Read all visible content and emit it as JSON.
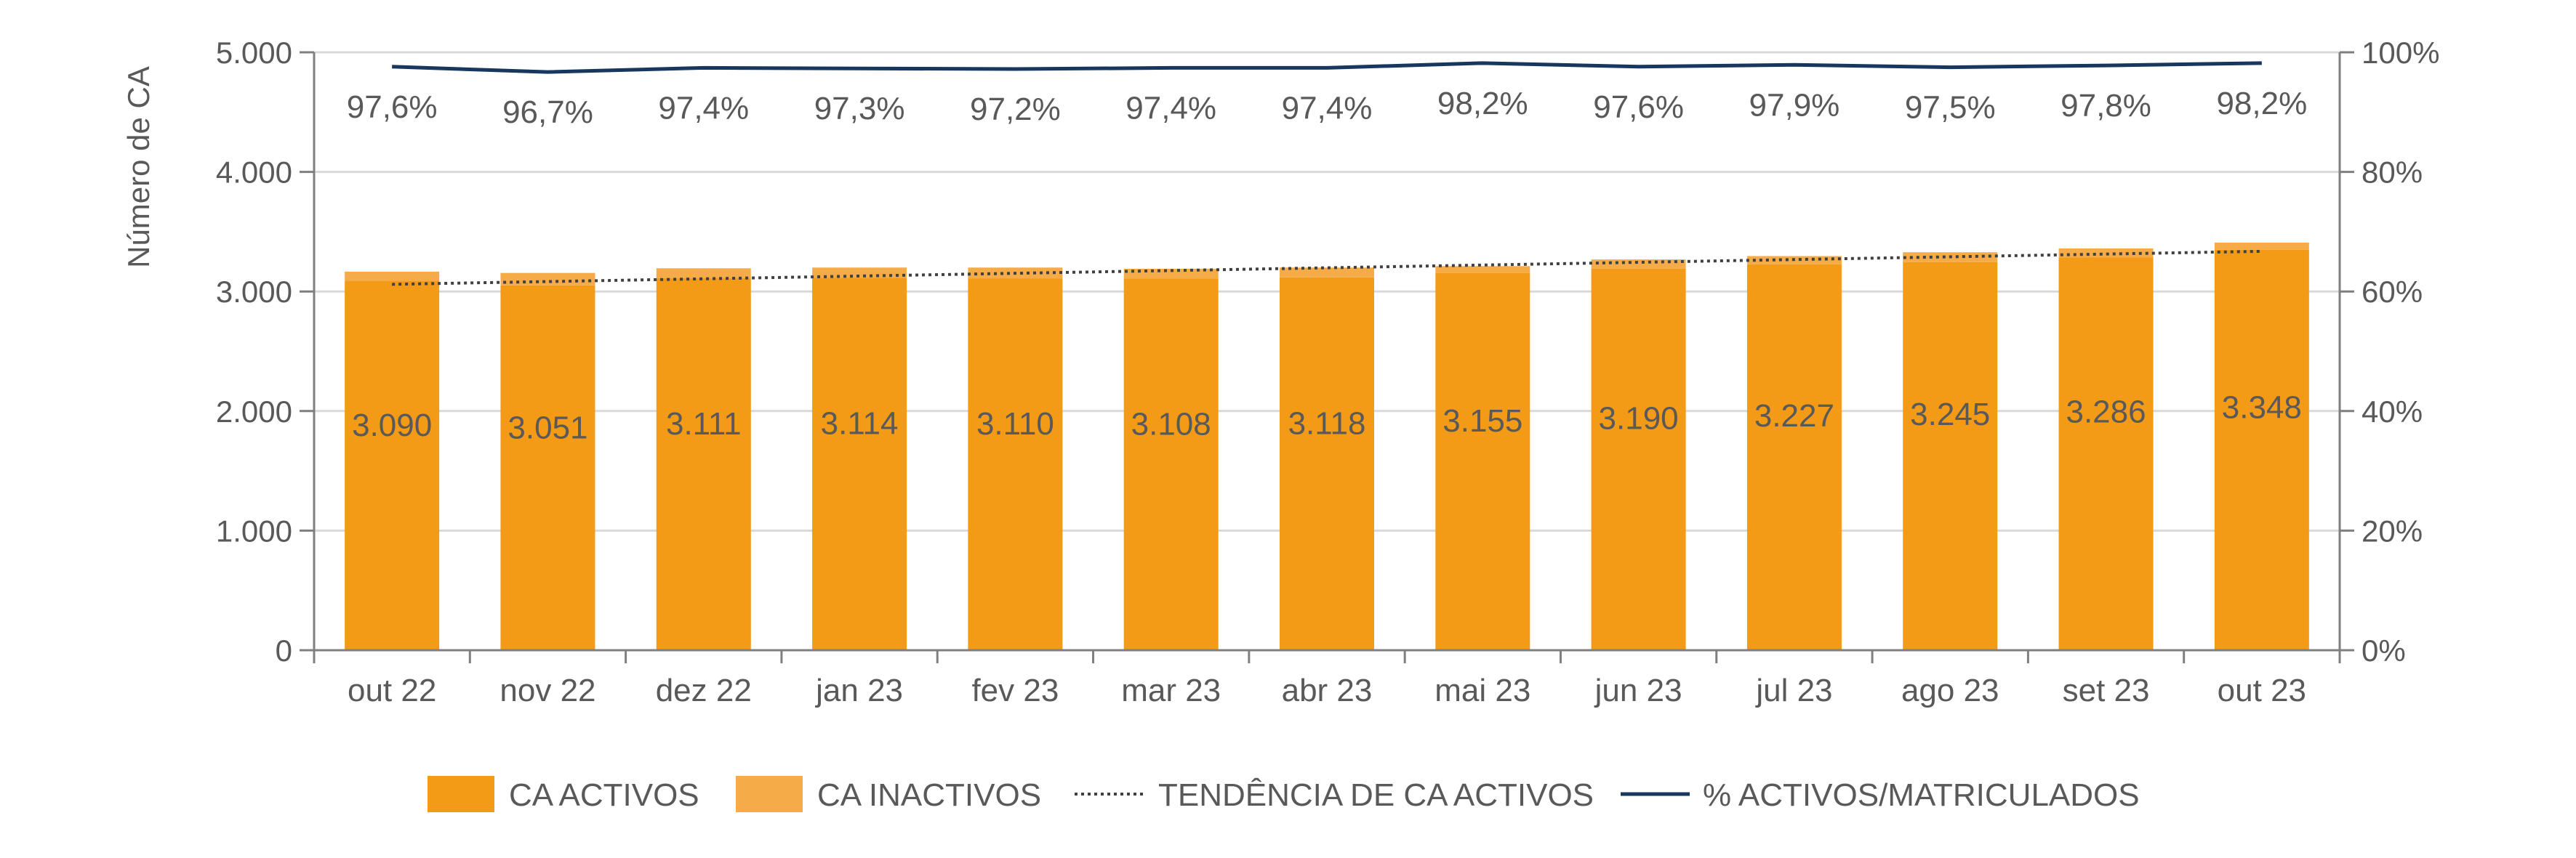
{
  "chart_data": {
    "type": "bar",
    "title": "",
    "xlabel": "",
    "ylabel": "Número de CA",
    "y2label": "",
    "ylim": [
      0,
      5000
    ],
    "y2lim": [
      0,
      100
    ],
    "yticks": [
      "0",
      "1.000",
      "2.000",
      "3.000",
      "4.000",
      "5.000"
    ],
    "y2ticks": [
      "0%",
      "20%",
      "40%",
      "60%",
      "80%",
      "100%"
    ],
    "categories": [
      "out 22",
      "nov 22",
      "dez 22",
      "jan 23",
      "fev 23",
      "mar 23",
      "abr 23",
      "mai 23",
      "jun 23",
      "jul 23",
      "ago 23",
      "set 23",
      "out 23"
    ],
    "series": [
      {
        "name": "CA ACTIVOS",
        "type": "bar-stacked",
        "color": "#F39A17",
        "values": [
          3090,
          3051,
          3111,
          3114,
          3110,
          3108,
          3118,
          3155,
          3190,
          3227,
          3245,
          3286,
          3348
        ],
        "labels": [
          "3.090",
          "3.051",
          "3.111",
          "3.114",
          "3.110",
          "3.108",
          "3.118",
          "3.155",
          "3.190",
          "3.227",
          "3.245",
          "3.286",
          "3.348"
        ]
      },
      {
        "name": "CA INACTIVOS",
        "type": "bar-stacked",
        "color": "#F5AC48",
        "values": [
          76,
          104,
          83,
          86,
          90,
          82,
          82,
          57,
          78,
          69,
          83,
          74,
          61
        ]
      },
      {
        "name": "TENDÊNCIA DE CA ACTIVOS",
        "type": "trend-line",
        "color": "#404040",
        "values": [
          3060,
          3083,
          3106,
          3129,
          3152,
          3175,
          3198,
          3221,
          3244,
          3267,
          3290,
          3313,
          3336
        ]
      },
      {
        "name": "% ACTIVOS/MATRICULADOS",
        "type": "line",
        "axis": "secondary",
        "color": "#17375E",
        "values": [
          97.6,
          96.7,
          97.4,
          97.3,
          97.2,
          97.4,
          97.4,
          98.2,
          97.6,
          97.9,
          97.5,
          97.8,
          98.2
        ],
        "labels": [
          "97,6%",
          "96,7%",
          "97,4%",
          "97,3%",
          "97,2%",
          "97,4%",
          "97,4%",
          "98,2%",
          "97,6%",
          "97,9%",
          "97,5%",
          "97,8%",
          "98,2%"
        ]
      }
    ],
    "grid": true,
    "legend": "bottom"
  }
}
